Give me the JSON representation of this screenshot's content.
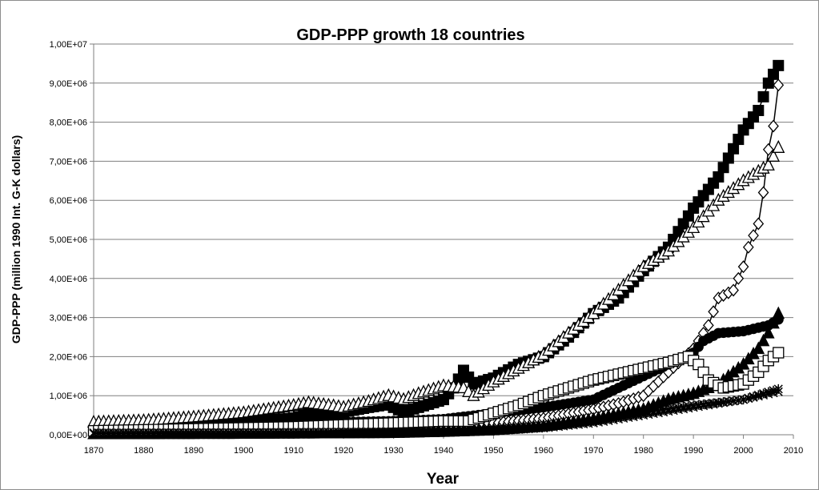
{
  "chart_data": {
    "type": "line",
    "title": "GDP-PPP growth 18 countries",
    "xlabel": "Year",
    "ylabel": "GDP-PPP (million 1990 Int. G-K dollars)",
    "xlim": [
      1870,
      2010
    ],
    "ylim": [
      0,
      10000000
    ],
    "xticks": [
      "1870",
      "1880",
      "1890",
      "1900",
      "1910",
      "1920",
      "1930",
      "1940",
      "1950",
      "1960",
      "1970",
      "1980",
      "1990",
      "2000",
      "2010"
    ],
    "yticks": [
      "0,00E+00",
      "1,00E+06",
      "2,00E+06",
      "3,00E+06",
      "4,00E+06",
      "5,00E+06",
      "6,00E+06",
      "7,00E+06",
      "8,00E+06",
      "9,00E+06",
      "1,00E+07"
    ],
    "grid": "horizontal",
    "legend": "none",
    "series": [
      {
        "marker": "filled-square",
        "points": [
          [
            1870,
            100000
          ],
          [
            1880,
            140000
          ],
          [
            1890,
            200000
          ],
          [
            1900,
            310000
          ],
          [
            1910,
            430000
          ],
          [
            1913,
            530000
          ],
          [
            1918,
            520000
          ],
          [
            1920,
            580000
          ],
          [
            1925,
            700000
          ],
          [
            1929,
            780000
          ],
          [
            1930,
            700000
          ],
          [
            1932,
            580000
          ],
          [
            1935,
            700000
          ],
          [
            1940,
            900000
          ],
          [
            1942,
            1200000
          ],
          [
            1944,
            1650000
          ],
          [
            1946,
            1300000
          ],
          [
            1950,
            1450000
          ],
          [
            1955,
            1800000
          ],
          [
            1960,
            2000000
          ],
          [
            1965,
            2500000
          ],
          [
            1970,
            3100000
          ],
          [
            1975,
            3500000
          ],
          [
            1980,
            4200000
          ],
          [
            1985,
            4800000
          ],
          [
            1990,
            5800000
          ],
          [
            1995,
            6600000
          ],
          [
            2000,
            7800000
          ],
          [
            2003,
            8300000
          ],
          [
            2005,
            9000000
          ],
          [
            2007,
            9450000
          ]
        ]
      },
      {
        "marker": "open-diamond",
        "points": [
          [
            1870,
            100000
          ],
          [
            1900,
            100000
          ],
          [
            1930,
            150000
          ],
          [
            1940,
            200000
          ],
          [
            1950,
            300000
          ],
          [
            1960,
            420000
          ],
          [
            1970,
            650000
          ],
          [
            1975,
            800000
          ],
          [
            1980,
            1000000
          ],
          [
            1985,
            1600000
          ],
          [
            1990,
            2200000
          ],
          [
            1993,
            2800000
          ],
          [
            1995,
            3500000
          ],
          [
            1998,
            3700000
          ],
          [
            2000,
            4300000
          ],
          [
            2001,
            4800000
          ],
          [
            2003,
            5400000
          ],
          [
            2004,
            6200000
          ],
          [
            2005,
            7300000
          ],
          [
            2006,
            7900000
          ],
          [
            2007,
            8950000
          ]
        ]
      },
      {
        "marker": "open-triangle",
        "points": [
          [
            1870,
            320000
          ],
          [
            1880,
            360000
          ],
          [
            1890,
            450000
          ],
          [
            1900,
            560000
          ],
          [
            1910,
            750000
          ],
          [
            1913,
            820000
          ],
          [
            1918,
            740000
          ],
          [
            1920,
            700000
          ],
          [
            1925,
            850000
          ],
          [
            1929,
            1000000
          ],
          [
            1932,
            900000
          ],
          [
            1935,
            1050000
          ],
          [
            1940,
            1250000
          ],
          [
            1944,
            1200000
          ],
          [
            1946,
            1000000
          ],
          [
            1950,
            1350000
          ],
          [
            1955,
            1700000
          ],
          [
            1960,
            2050000
          ],
          [
            1965,
            2600000
          ],
          [
            1970,
            3100000
          ],
          [
            1975,
            3700000
          ],
          [
            1980,
            4300000
          ],
          [
            1985,
            4700000
          ],
          [
            1990,
            5300000
          ],
          [
            1995,
            6000000
          ],
          [
            2000,
            6500000
          ],
          [
            2005,
            6900000
          ],
          [
            2007,
            7350000
          ]
        ]
      },
      {
        "marker": "filled-triangle",
        "points": [
          [
            1870,
            20000
          ],
          [
            1900,
            30000
          ],
          [
            1930,
            50000
          ],
          [
            1940,
            80000
          ],
          [
            1950,
            120000
          ],
          [
            1960,
            220000
          ],
          [
            1970,
            400000
          ],
          [
            1980,
            650000
          ],
          [
            1985,
            900000
          ],
          [
            1990,
            1050000
          ],
          [
            1995,
            1300000
          ],
          [
            2000,
            1800000
          ],
          [
            2003,
            2200000
          ],
          [
            2005,
            2600000
          ],
          [
            2007,
            3100000
          ]
        ]
      },
      {
        "marker": "filled-circle",
        "points": [
          [
            1870,
            100000
          ],
          [
            1900,
            200000
          ],
          [
            1913,
            300000
          ],
          [
            1930,
            350000
          ],
          [
            1940,
            400000
          ],
          [
            1950,
            550000
          ],
          [
            1960,
            700000
          ],
          [
            1965,
            800000
          ],
          [
            1970,
            900000
          ],
          [
            1975,
            1200000
          ],
          [
            1980,
            1500000
          ],
          [
            1985,
            1800000
          ],
          [
            1990,
            2100000
          ],
          [
            1992,
            2400000
          ],
          [
            1995,
            2600000
          ],
          [
            2000,
            2650000
          ],
          [
            2005,
            2800000
          ],
          [
            2007,
            2950000
          ]
        ]
      },
      {
        "marker": "open-square",
        "points": [
          [
            1870,
            100000
          ],
          [
            1890,
            150000
          ],
          [
            1910,
            200000
          ],
          [
            1930,
            300000
          ],
          [
            1940,
            350000
          ],
          [
            1945,
            350000
          ],
          [
            1950,
            550000
          ],
          [
            1955,
            750000
          ],
          [
            1960,
            1000000
          ],
          [
            1965,
            1200000
          ],
          [
            1970,
            1400000
          ],
          [
            1975,
            1550000
          ],
          [
            1980,
            1700000
          ],
          [
            1985,
            1850000
          ],
          [
            1989,
            2000000
          ],
          [
            1991,
            1800000
          ],
          [
            1993,
            1400000
          ],
          [
            1996,
            1200000
          ],
          [
            2000,
            1300000
          ],
          [
            2003,
            1600000
          ],
          [
            2005,
            1900000
          ],
          [
            2007,
            2100000
          ]
        ]
      },
      {
        "marker": "star",
        "points": [
          [
            1870,
            30000
          ],
          [
            1900,
            40000
          ],
          [
            1930,
            60000
          ],
          [
            1940,
            80000
          ],
          [
            1950,
            120000
          ],
          [
            1960,
            200000
          ],
          [
            1970,
            350000
          ],
          [
            1980,
            550000
          ],
          [
            1990,
            750000
          ],
          [
            2000,
            900000
          ],
          [
            2007,
            1170000
          ]
        ]
      },
      {
        "marker": "cross",
        "points": [
          [
            1870,
            50000
          ],
          [
            1900,
            60000
          ],
          [
            1930,
            80000
          ],
          [
            1950,
            100000
          ],
          [
            1960,
            170000
          ],
          [
            1970,
            300000
          ],
          [
            1980,
            500000
          ],
          [
            1990,
            700000
          ],
          [
            2000,
            900000
          ],
          [
            2007,
            1100000
          ]
        ]
      }
    ]
  }
}
